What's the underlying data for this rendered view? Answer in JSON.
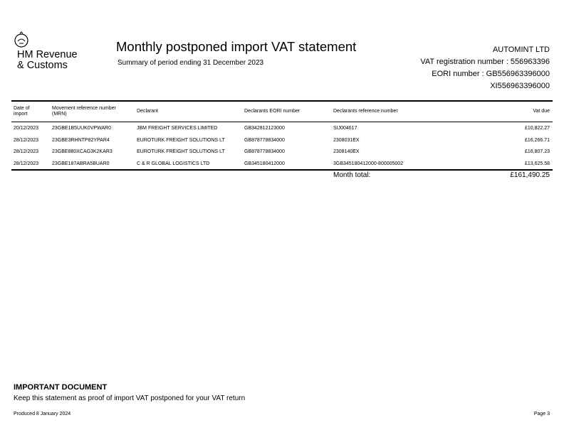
{
  "brand": {
    "logo_text_line1": "HM Revenue",
    "logo_text_line2": "& Customs",
    "logo_icon": "crown-crest-icon"
  },
  "header": {
    "title": "Monthly postponed import VAT statement",
    "subtitle": "Summary of period ending 31 December 2023",
    "company": "AUTOMINT LTD",
    "vat_registration": "VAT registration number : 556963396",
    "eori": "EORI number : GB556963396000",
    "xi": "XI556963396000"
  },
  "table": {
    "headers": [
      "Date of import",
      "Movement reference number (MRN)",
      "Declarant",
      "Declarants EORI number",
      "Declarants reference number",
      "Vat due"
    ],
    "rows": [
      [
        "20/12/2023",
        "23GBE1B5UUK0VPWAR0",
        "JBM FREIGHT SERVICES LIMITED",
        "GB342812123000",
        "SIJ004617",
        "£10,822.27"
      ],
      [
        "28/12/2023",
        "23GBE3RHNTP82YPAR4",
        "EUROTURK FREIGHT SOLUTIONS   LT",
        "GB878778834000",
        "2308031EX",
        "£16,266.71"
      ],
      [
        "28/12/2023",
        "23GBE880XCAG3K2KAR3",
        "EUROTURK FREIGHT SOLUTIONS   LT",
        "GB878778834000",
        "2308140EX",
        "£16,807.23"
      ],
      [
        "28/12/2023",
        "23GBE187ABRA5BUAR0",
        "C & R GLOBAL LOGISTICS LTD",
        "GB345180412000",
        "3GB345180412000-800005002",
        "£13,625.58"
      ]
    ],
    "total_label": "Month total:",
    "total_value": "£161,490.25"
  },
  "important": {
    "title": "IMPORTANT DOCUMENT",
    "text": "Keep this statement as proof of import VAT postponed for your VAT return"
  },
  "footer": {
    "produced": "Produced 8 January 2024",
    "page": "Page 3"
  }
}
